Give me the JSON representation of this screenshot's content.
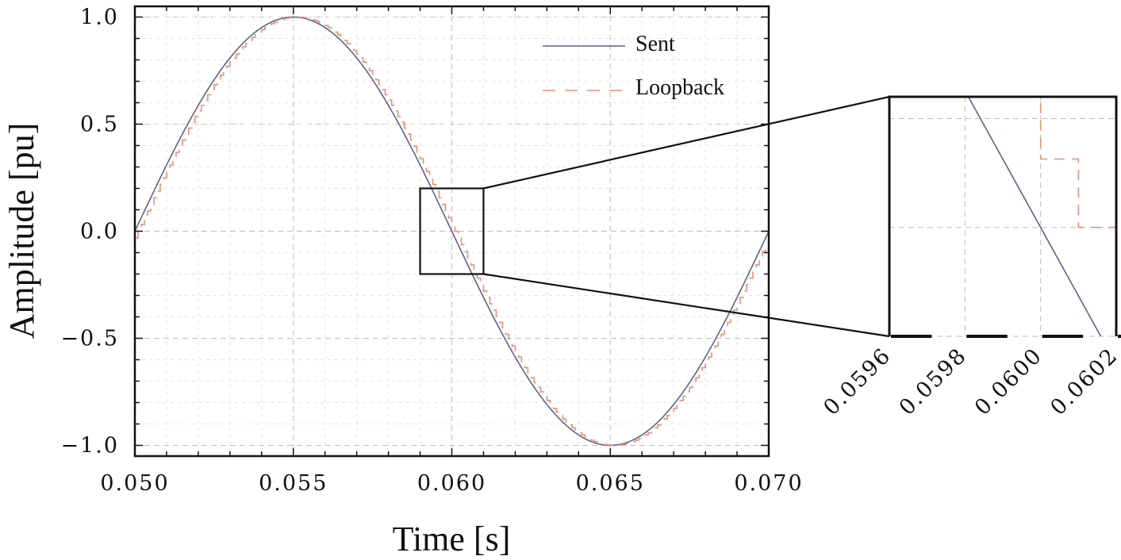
{
  "chart_data": [
    {
      "id": "main",
      "type": "line",
      "xlabel": "Time [s]",
      "ylabel": "Amplitude [pu]",
      "xlim": [
        0.05,
        0.07
      ],
      "ylim": [
        -1.05,
        1.05
      ],
      "xticks": [
        0.05,
        0.055,
        0.06,
        0.065,
        0.07
      ],
      "xtick_labels": [
        "0.050",
        "0.055",
        "0.060",
        "0.065",
        "0.070"
      ],
      "yticks": [
        1.0,
        0.5,
        0.0,
        -0.5,
        -1.0
      ],
      "ytick_labels": [
        "1.0",
        "0.5",
        "0.0",
        "−0.5",
        "−1.0"
      ],
      "grid": true,
      "legend_position": "top-right",
      "series": [
        {
          "name": "Sent",
          "function": "sine",
          "frequency_hz": 50,
          "amplitude": 1.0,
          "peak_time": 0.055,
          "color": "#5b6485",
          "style": "solid"
        },
        {
          "name": "Loopback",
          "function": "sine_sampled",
          "frequency_hz": 50,
          "amplitude": 1.0,
          "peak_time": 0.055,
          "delay_s": 0.0001,
          "sample_period_s": 0.0001,
          "color": "#e0937a",
          "style": "dashed"
        }
      ],
      "zoom_region": {
        "x": [
          0.059,
          0.061
        ],
        "y": [
          -0.2,
          0.2
        ]
      }
    },
    {
      "id": "inset",
      "type": "line",
      "xlim": [
        0.0596,
        0.0602
      ],
      "ylim": [
        -0.05,
        0.06
      ],
      "xticks": [
        0.0596,
        0.0598,
        0.06,
        0.0602
      ],
      "xtick_labels": [
        "0.0596",
        "0.0598",
        "0.0600",
        "0.0602"
      ],
      "yticks": [
        0.05,
        0.0,
        -0.05
      ],
      "grid": true,
      "series_ref": [
        "Sent",
        "Loopback"
      ]
    }
  ]
}
